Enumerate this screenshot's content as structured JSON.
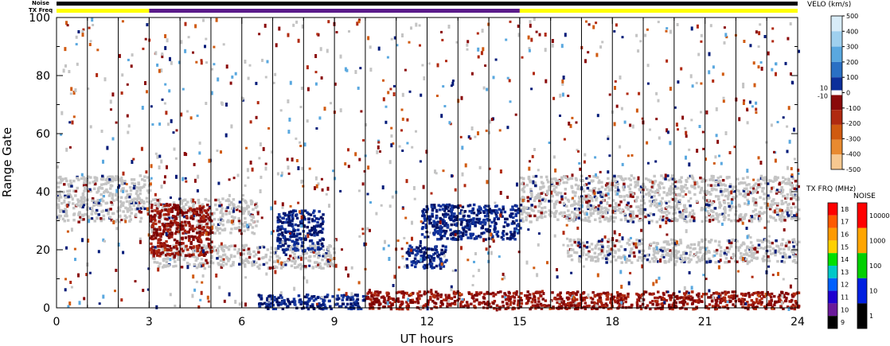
{
  "chart_data": {
    "type": "heatmap",
    "xlabel": "UT hours",
    "ylabel": "Range Gate",
    "xlim": [
      0,
      24
    ],
    "ylim": [
      0,
      100
    ],
    "x_ticks": [
      0,
      3,
      6,
      9,
      12,
      15,
      18,
      21,
      24
    ],
    "y_ticks": [
      0,
      20,
      40,
      60,
      80,
      100
    ],
    "top_bars": {
      "noise_label": "Noise",
      "txfreq_label": "TX Freq",
      "txfreq_segments": [
        {
          "start": 0,
          "end": 3,
          "color": "#ffff00"
        },
        {
          "start": 3,
          "end": 15,
          "color": "#5a1a8a"
        },
        {
          "start": 15,
          "end": 24,
          "color": "#ffff00"
        }
      ]
    },
    "scan_boundaries_ut": [
      1.0,
      2.0,
      3.0,
      4.0,
      5.0,
      6.0,
      7.0,
      8.0,
      9.0,
      10.0,
      11.0,
      12.0,
      13.0,
      14.0,
      15.0,
      16.0,
      17.0,
      18.0,
      19.0,
      20.0,
      21.0,
      22.0,
      23.0
    ],
    "velocity_colorbar": {
      "title": "VELO (km/s)",
      "labels": [
        "500",
        "400",
        "300",
        "200",
        "100",
        "0",
        "-100",
        "-200",
        "-300",
        "-400",
        "-500"
      ],
      "extra_labels": [
        "10",
        "-10"
      ],
      "colors": [
        "#d8ecf8",
        "#9fd0ee",
        "#5aa8df",
        "#2a70c4",
        "#0c2f9a",
        "#001a78",
        "#8a0a0a",
        "#b02a10",
        "#d05a10",
        "#e88a30",
        "#f6c890"
      ]
    },
    "txfreq_colorbar": {
      "title": "TX FRQ (MHz)",
      "labels": [
        "18",
        "17",
        "16",
        "15",
        "14",
        "13",
        "12",
        "11",
        "10",
        "9"
      ],
      "colors": [
        "#ff0000",
        "#ff5a00",
        "#ff9a00",
        "#ffd000",
        "#00e000",
        "#00c8c8",
        "#0060ff",
        "#2000d0",
        "#6a1a9a",
        "#000000"
      ]
    },
    "noise_colorbar": {
      "title": "NOISE",
      "labels": [
        "10000",
        "1000",
        "100",
        "10",
        "1"
      ],
      "colors": [
        "#ff0000",
        "#ffa500",
        "#00d000",
        "#0020e0",
        "#000000"
      ]
    },
    "regions": [
      {
        "kind": "ground",
        "ut": [
          0,
          3
        ],
        "gate": [
          30,
          46
        ]
      },
      {
        "kind": "ground",
        "ut": [
          3,
          6.5
        ],
        "gate": [
          26,
          38
        ]
      },
      {
        "kind": "ground",
        "ut": [
          3,
          9
        ],
        "gate": [
          14,
          22
        ]
      },
      {
        "kind": "ground",
        "ut": [
          15,
          24
        ],
        "gate": [
          30,
          46
        ]
      },
      {
        "kind": "ground",
        "ut": [
          16.5,
          24
        ],
        "gate": [
          16,
          24
        ]
      },
      {
        "kind": "positive",
        "ut": [
          7.1,
          8.6
        ],
        "gate": [
          20,
          34
        ]
      },
      {
        "kind": "positive",
        "ut": [
          6.5,
          10
        ],
        "gate": [
          0,
          5
        ]
      },
      {
        "kind": "positive",
        "ut": [
          11.8,
          15
        ],
        "gate": [
          24,
          36
        ]
      },
      {
        "kind": "positive",
        "ut": [
          11.3,
          12.6
        ],
        "gate": [
          14,
          22
        ]
      },
      {
        "kind": "negative",
        "ut": [
          10,
          24
        ],
        "gate": [
          0,
          6
        ]
      },
      {
        "kind": "negative",
        "ut": [
          3,
          5
        ],
        "gate": [
          18,
          36
        ]
      }
    ]
  }
}
